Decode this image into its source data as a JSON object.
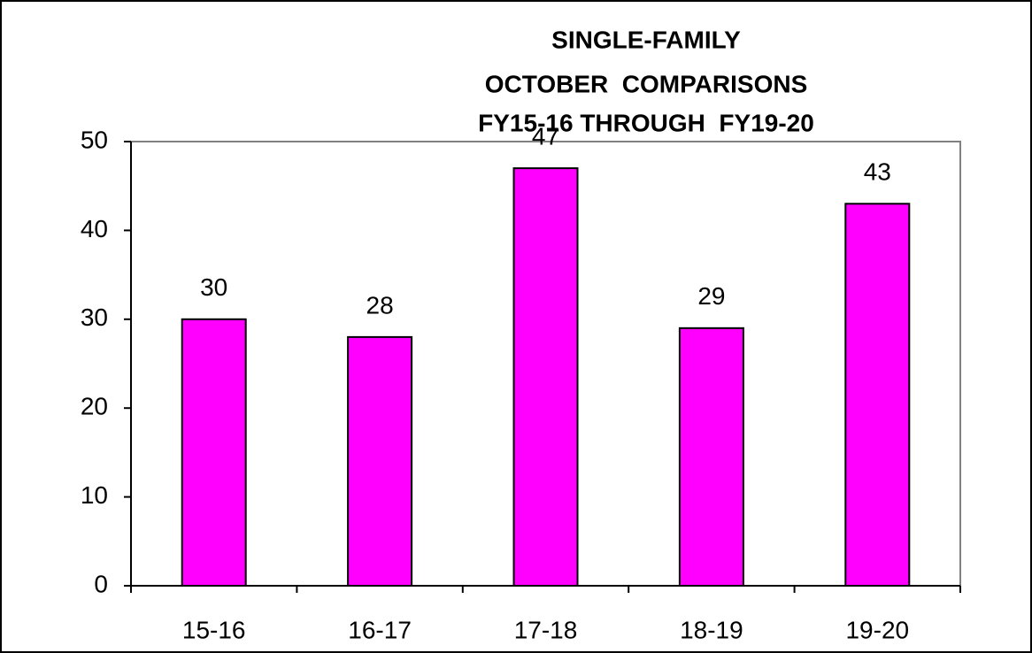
{
  "chart_data": {
    "type": "bar",
    "title": [
      "SINGLE-FAMILY",
      "OCTOBER  COMPARISONS",
      "FY15-16 THROUGH  FY19-20"
    ],
    "categories": [
      "15-16",
      "16-17",
      "17-18",
      "18-19",
      "19-20"
    ],
    "values": [
      30,
      28,
      47,
      29,
      43
    ],
    "color": "#ff00ff",
    "ylim": [
      0,
      50
    ],
    "yticks": [
      0,
      10,
      20,
      30,
      40,
      50
    ],
    "grid": false
  }
}
